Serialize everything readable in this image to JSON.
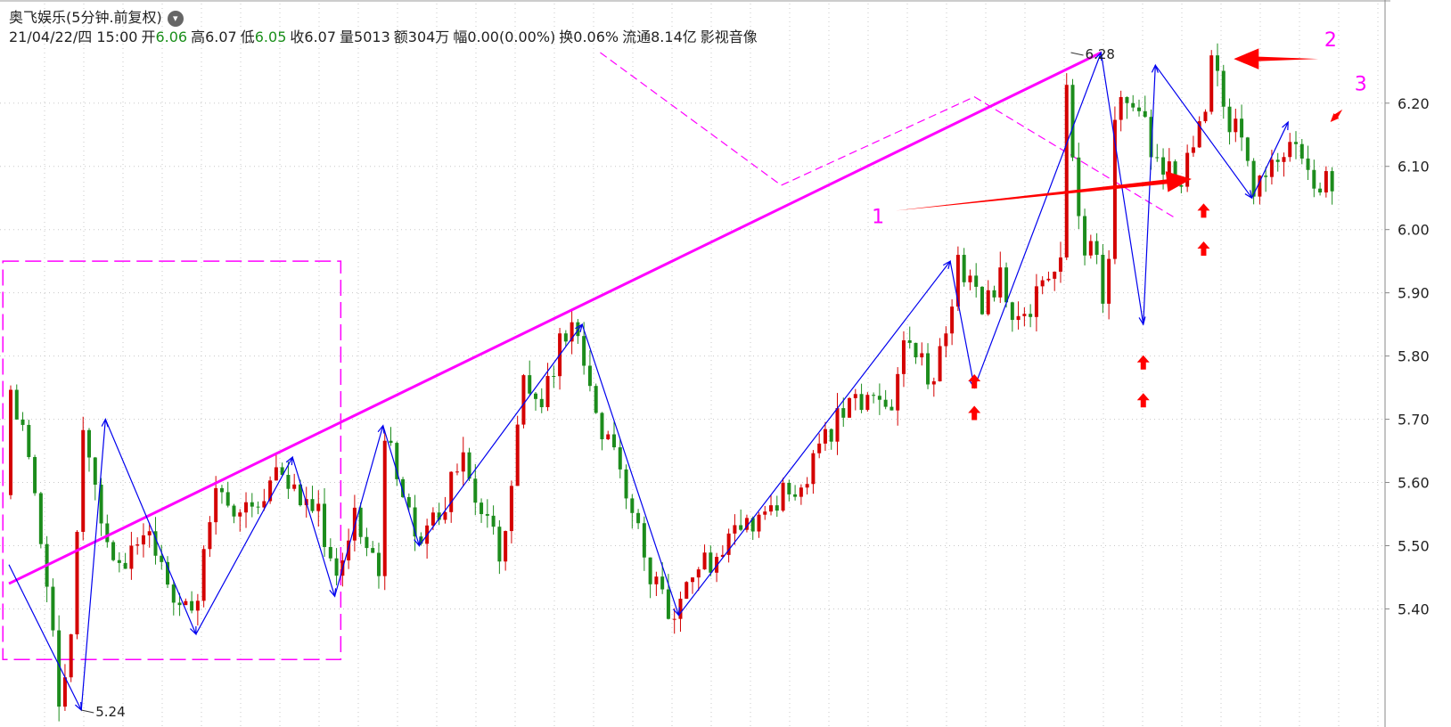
{
  "header": {
    "stock_name": "奥飞娱乐",
    "period": "(5分钟.前复权)",
    "datetime": "21/04/22/四 15:00",
    "open_label": "开",
    "open_value": "6.06",
    "high_label": "高",
    "high_value": "6.07",
    "low_label": "低",
    "low_value": "6.05",
    "close_label": "收",
    "close_value": "6.07",
    "volume_label": "量",
    "volume_value": "5013",
    "amount_label": "额",
    "amount_value": "304万",
    "change_label": "幅",
    "change_value": "0.00(0.00%)",
    "turnover_label": "换",
    "turnover_value": "0.06%",
    "float_label": "流通",
    "float_value": "8.14亿",
    "sector": "影视音像"
  },
  "chart_data": {
    "type": "candlestick",
    "ylim": [
      5.22,
      6.31
    ],
    "yticks": [
      5.4,
      5.5,
      5.6,
      5.7,
      5.8,
      5.9,
      6.0,
      6.1,
      6.2
    ],
    "ytick_labels": [
      "5.40",
      "5.50",
      "5.60",
      "5.70",
      "5.80",
      "5.90",
      "6.00",
      "6.10",
      "6.20"
    ],
    "grid": true,
    "colors": {
      "up": "#d40000",
      "down": "#1c8c1c",
      "grid": "#c8c8c8",
      "trendline": "#ff00ff",
      "zigzag": "#0000ee",
      "arrow": "#ff0000"
    },
    "price_path": [
      [
        0,
        5.58
      ],
      [
        1,
        5.76
      ],
      [
        4,
        5.62
      ],
      [
        6,
        5.47
      ],
      [
        8,
        5.37
      ],
      [
        9,
        5.24
      ],
      [
        11,
        5.4
      ],
      [
        13,
        5.7
      ],
      [
        16,
        5.55
      ],
      [
        19,
        5.45
      ],
      [
        24,
        5.52
      ],
      [
        28,
        5.39
      ],
      [
        32,
        5.4
      ],
      [
        34,
        5.58
      ],
      [
        40,
        5.55
      ],
      [
        45,
        5.63
      ],
      [
        48,
        5.58
      ],
      [
        52,
        5.55
      ],
      [
        55,
        5.43
      ],
      [
        58,
        5.55
      ],
      [
        62,
        5.45
      ],
      [
        63,
        5.69
      ],
      [
        66,
        5.58
      ],
      [
        69,
        5.5
      ],
      [
        73,
        5.58
      ],
      [
        76,
        5.63
      ],
      [
        79,
        5.55
      ],
      [
        82,
        5.49
      ],
      [
        84,
        5.63
      ],
      [
        86,
        5.76
      ],
      [
        89,
        5.72
      ],
      [
        93,
        5.85
      ],
      [
        96,
        5.78
      ],
      [
        99,
        5.68
      ],
      [
        102,
        5.62
      ],
      [
        104,
        5.55
      ],
      [
        108,
        5.42
      ],
      [
        110,
        5.39
      ],
      [
        113,
        5.43
      ],
      [
        116,
        5.47
      ],
      [
        120,
        5.5
      ],
      [
        124,
        5.55
      ],
      [
        128,
        5.58
      ],
      [
        132,
        5.6
      ],
      [
        136,
        5.67
      ],
      [
        140,
        5.73
      ],
      [
        144,
        5.73
      ],
      [
        147,
        5.71
      ],
      [
        148,
        5.8
      ],
      [
        150,
        5.84
      ],
      [
        153,
        5.75
      ],
      [
        156,
        5.85
      ],
      [
        158,
        5.95
      ],
      [
        162,
        5.88
      ],
      [
        165,
        5.93
      ],
      [
        168,
        5.85
      ],
      [
        172,
        5.92
      ],
      [
        175,
        5.95
      ],
      [
        176,
        6.28
      ],
      [
        177,
        6.05
      ],
      [
        179,
        5.97
      ],
      [
        181,
        5.95
      ],
      [
        182,
        5.89
      ],
      [
        183,
        5.95
      ],
      [
        184,
        6.25
      ],
      [
        186,
        6.2
      ],
      [
        188,
        6.18
      ],
      [
        190,
        6.12
      ],
      [
        193,
        6.1
      ],
      [
        195,
        6.07
      ],
      [
        197,
        6.15
      ],
      [
        199,
        6.2
      ],
      [
        200,
        6.28
      ],
      [
        202,
        6.18
      ],
      [
        205,
        6.16
      ],
      [
        207,
        6.06
      ],
      [
        210,
        6.13
      ],
      [
        212,
        6.12
      ],
      [
        213,
        6.15
      ],
      [
        215,
        6.1
      ],
      [
        219,
        6.07
      ]
    ],
    "pivot_labels": [
      {
        "name": "low-pivot-label",
        "text": "5.24",
        "bar": 12,
        "price": 5.24
      },
      {
        "name": "high-pivot-label",
        "text": "6.28",
        "bar": 176,
        "price": 6.28
      }
    ],
    "zigzag": [
      [
        0,
        5.47
      ],
      [
        12,
        5.24
      ],
      [
        16,
        5.7
      ],
      [
        31,
        5.36
      ],
      [
        47,
        5.64
      ],
      [
        54,
        5.42
      ],
      [
        62,
        5.69
      ],
      [
        68,
        5.5
      ],
      [
        95,
        5.85
      ],
      [
        111,
        5.39
      ],
      [
        156,
        5.95
      ],
      [
        160,
        5.75
      ],
      [
        181,
        6.28
      ],
      [
        188,
        5.85
      ],
      [
        190,
        6.26
      ],
      [
        206,
        6.05
      ],
      [
        212,
        6.17
      ]
    ],
    "trendline": [
      [
        0,
        5.44
      ],
      [
        181,
        6.28
      ]
    ],
    "annotations": [
      {
        "name": "annotation-1",
        "text": "1",
        "bar": 143,
        "price": 6.01
      },
      {
        "name": "annotation-2",
        "text": "2",
        "bar": 218,
        "price": 6.29
      },
      {
        "name": "annotation-3",
        "text": "3",
        "bar": 223,
        "price": 6.22
      }
    ],
    "big_arrows": [
      {
        "name": "arrow-1",
        "from": [
          147,
          6.03
        ],
        "to": [
          196,
          6.08
        ]
      },
      {
        "name": "arrow-2",
        "from": [
          217,
          6.27
        ],
        "to": [
          203,
          6.27
        ]
      },
      {
        "name": "arrow-3",
        "from": [
          221,
          6.19
        ],
        "to": [
          219,
          6.17
        ]
      }
    ],
    "up_arrows": [
      {
        "bar": 160,
        "price": 5.71
      },
      {
        "bar": 160,
        "price": 5.76
      },
      {
        "bar": 188,
        "price": 5.73
      },
      {
        "bar": 188,
        "price": 5.79
      },
      {
        "bar": 198,
        "price": 5.97
      },
      {
        "bar": 198,
        "price": 6.03
      }
    ],
    "dashed_rect": {
      "bar_from": -1,
      "bar_to": 55,
      "price_top": 5.95,
      "price_bottom": 5.32
    },
    "dashed_lines": [
      {
        "name": "dashed-channel-top",
        "points": [
          [
            98,
            6.28
          ],
          [
            128,
            6.07
          ],
          [
            160,
            6.21
          ],
          [
            193,
            6.02
          ]
        ]
      }
    ]
  }
}
